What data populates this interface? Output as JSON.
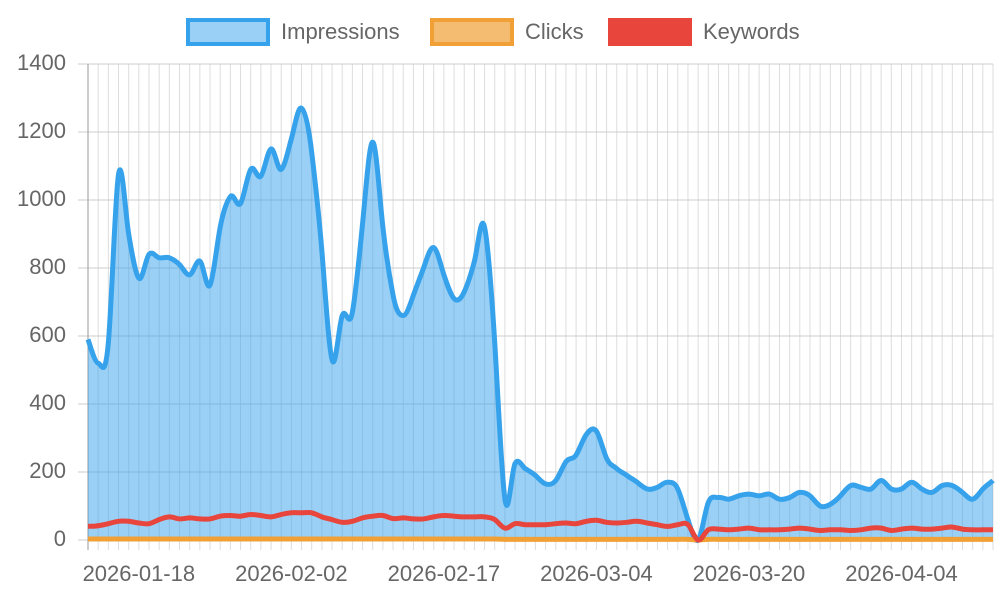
{
  "chart_data": {
    "type": "line",
    "categories": [
      null,
      null,
      null,
      null,
      null,
      "2026-01-18",
      null,
      null,
      null,
      null,
      null,
      null,
      null,
      null,
      null,
      null,
      null,
      null,
      null,
      null,
      "2026-02-02",
      null,
      null,
      null,
      null,
      null,
      null,
      null,
      null,
      null,
      null,
      null,
      null,
      null,
      null,
      "2026-02-17",
      null,
      null,
      null,
      null,
      null,
      null,
      null,
      null,
      null,
      null,
      null,
      null,
      null,
      null,
      "2026-03-04",
      null,
      null,
      null,
      null,
      null,
      null,
      null,
      null,
      null,
      null,
      null,
      null,
      null,
      null,
      "2026-03-20",
      null,
      null,
      null,
      null,
      null,
      null,
      null,
      null,
      null,
      null,
      null,
      null,
      null,
      null,
      "2026-04-04",
      null,
      null,
      null,
      null,
      null,
      null,
      null,
      null,
      null
    ],
    "series": [
      {
        "name": "Impressions",
        "color": "#36a2eb",
        "fill": "rgba(54,162,235,0.5)",
        "values": [
          590,
          520,
          580,
          1075,
          900,
          770,
          840,
          830,
          830,
          810,
          780,
          820,
          750,
          920,
          1010,
          990,
          1090,
          1070,
          1150,
          1090,
          1180,
          1270,
          1140,
          850,
          530,
          660,
          670,
          930,
          1170,
          920,
          720,
          660,
          720,
          800,
          860,
          780,
          710,
          730,
          820,
          920,
          580,
          120,
          225,
          210,
          190,
          165,
          175,
          230,
          250,
          310,
          320,
          240,
          210,
          190,
          170,
          150,
          155,
          170,
          150,
          60,
          0,
          110,
          125,
          120,
          130,
          135,
          130,
          135,
          120,
          125,
          140,
          130,
          100,
          105,
          130,
          160,
          155,
          150,
          175,
          150,
          150,
          170,
          150,
          140,
          160,
          160,
          140,
          120,
          150,
          175
        ]
      },
      {
        "name": "Clicks",
        "color": "#f0a035",
        "fill": "rgba(240,160,53,0.7)",
        "values": [
          3,
          3,
          3,
          3,
          3,
          3,
          3,
          3,
          3,
          3,
          3,
          3,
          3,
          3,
          3,
          3,
          3,
          3,
          3,
          3,
          3,
          3,
          3,
          3,
          3,
          3,
          3,
          3,
          3,
          3,
          3,
          3,
          3,
          3,
          3,
          3,
          3,
          3,
          3,
          3,
          3,
          2,
          2,
          2,
          2,
          2,
          2,
          2,
          2,
          2,
          2,
          2,
          2,
          2,
          2,
          2,
          2,
          2,
          2,
          2,
          0,
          2,
          2,
          2,
          2,
          2,
          2,
          2,
          2,
          2,
          2,
          2,
          2,
          2,
          2,
          2,
          2,
          2,
          2,
          2,
          2,
          2,
          2,
          2,
          2,
          2,
          2,
          2,
          2,
          2
        ]
      },
      {
        "name": "Keywords",
        "color": "#e8453c",
        "fill": "#e8453c",
        "values": [
          40,
          42,
          48,
          55,
          55,
          50,
          48,
          60,
          68,
          62,
          65,
          62,
          62,
          70,
          72,
          70,
          75,
          72,
          68,
          75,
          80,
          80,
          80,
          68,
          60,
          52,
          55,
          65,
          70,
          72,
          63,
          65,
          62,
          62,
          68,
          72,
          70,
          68,
          68,
          68,
          60,
          35,
          48,
          45,
          45,
          45,
          48,
          50,
          48,
          55,
          58,
          52,
          50,
          52,
          55,
          50,
          45,
          40,
          45,
          45,
          0,
          30,
          32,
          30,
          32,
          35,
          30,
          30,
          30,
          32,
          35,
          32,
          28,
          30,
          30,
          28,
          30,
          35,
          35,
          28,
          32,
          35,
          32,
          32,
          35,
          38,
          32,
          30,
          30,
          30
        ]
      }
    ],
    "ylim": [
      0,
      1400
    ],
    "yticks": [
      0,
      200,
      400,
      600,
      800,
      1000,
      1200,
      1400
    ],
    "grid": true,
    "legend": "top"
  }
}
